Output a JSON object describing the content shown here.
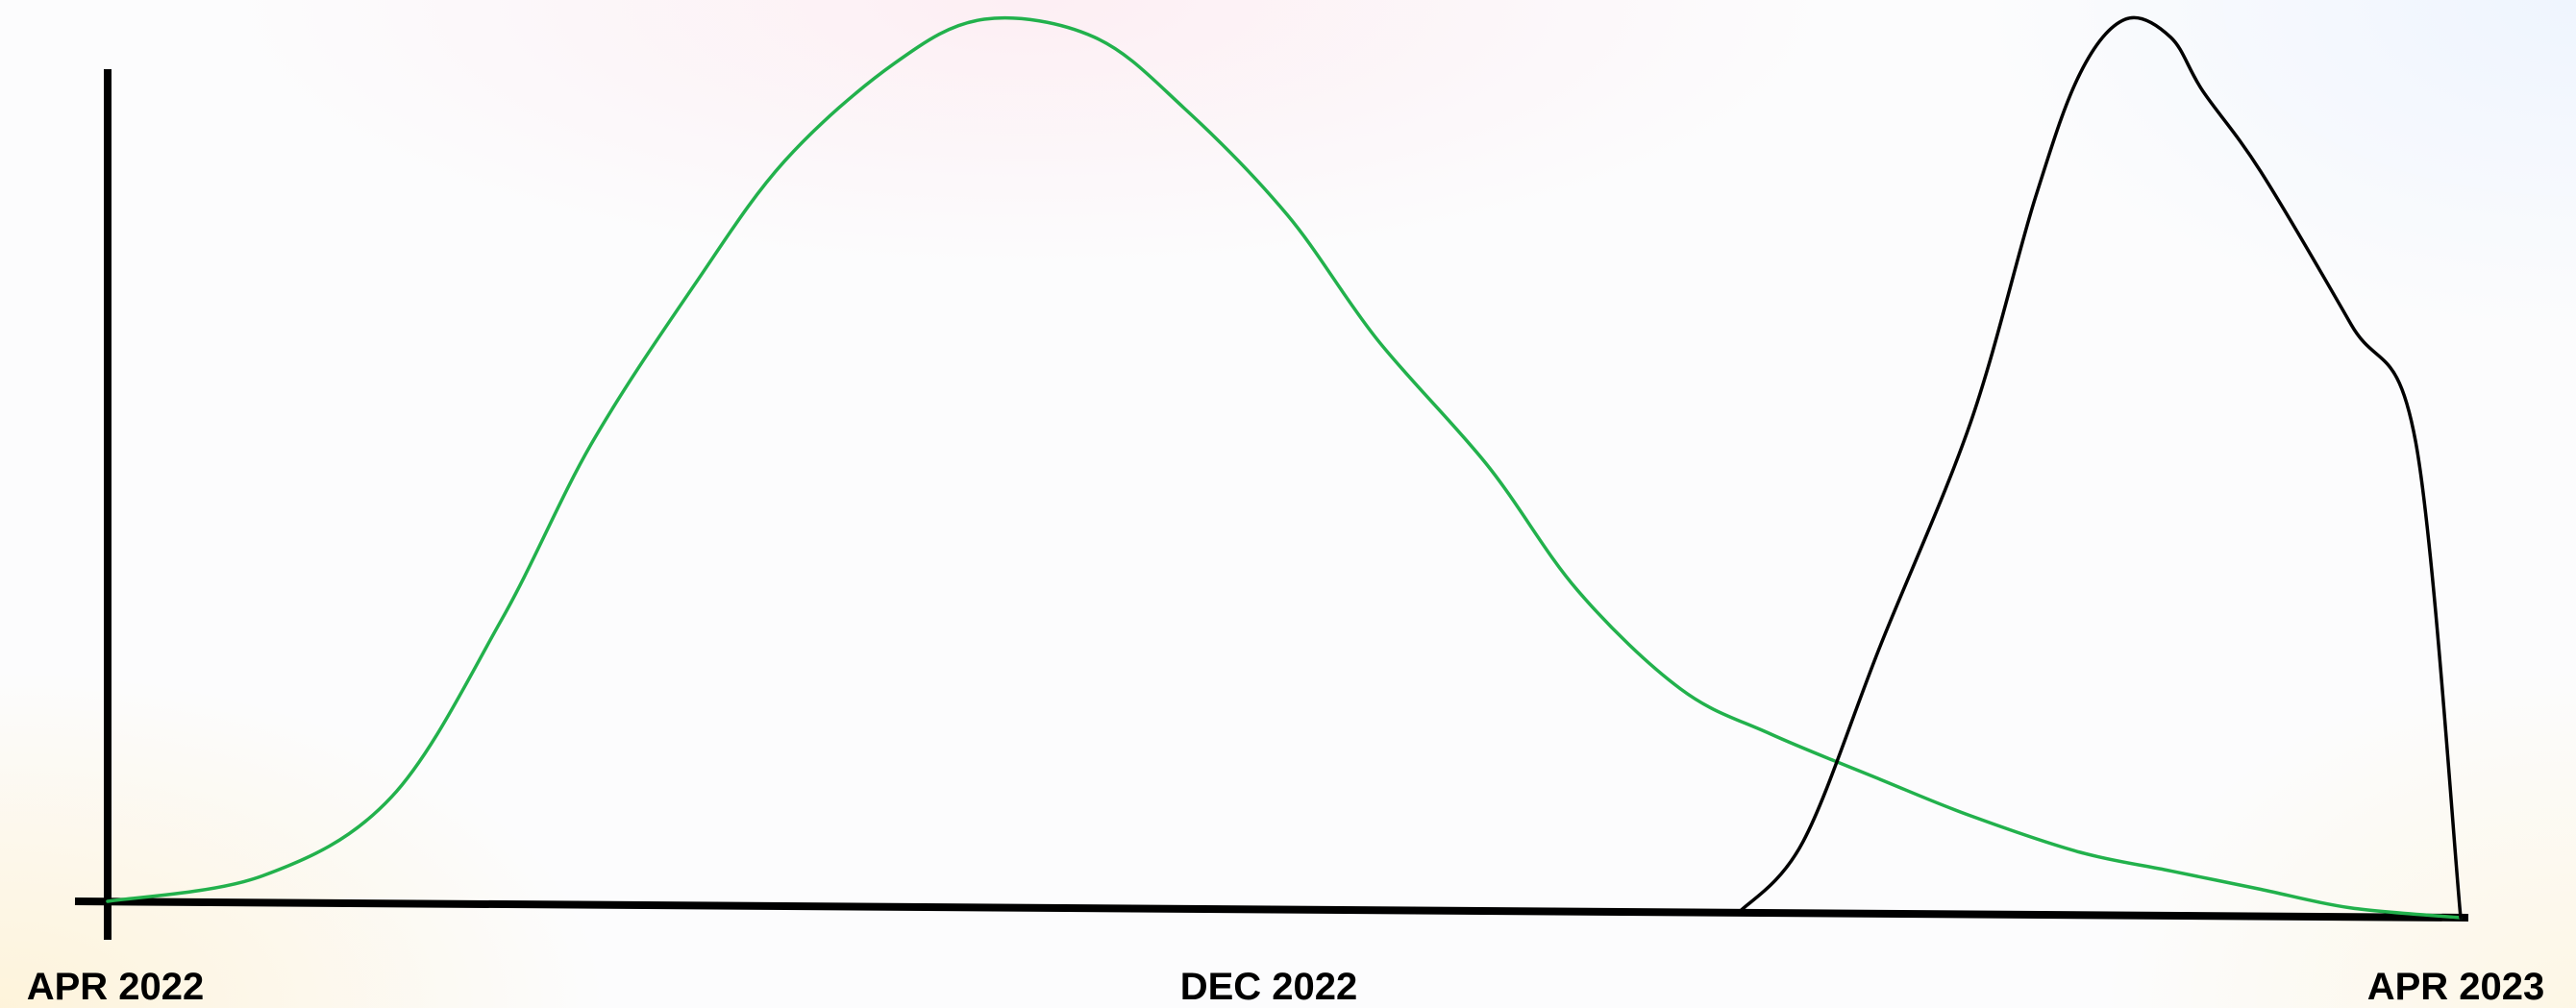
{
  "chart_data": {
    "type": "line",
    "title": "",
    "xlabel": "",
    "ylabel": "",
    "x_ticks": [
      "APR 2022",
      "DEC 2022",
      "APR 2023"
    ],
    "xlim": [
      "2022-04",
      "2023-04"
    ],
    "ylim": [
      0,
      100
    ],
    "grid": false,
    "legend": "none",
    "series": [
      {
        "color": "#22b14c",
        "x": [
          "2022-04-01",
          "2022-04-25",
          "2022-05-15",
          "2022-06-01",
          "2022-06-15",
          "2022-07-01",
          "2022-07-15",
          "2022-08-01",
          "2022-08-15",
          "2022-09-01",
          "2022-09-15",
          "2022-10-01",
          "2022-10-15",
          "2022-11-01",
          "2022-11-15",
          "2022-12-01",
          "2022-12-15",
          "2023-01-01",
          "2023-01-15",
          "2023-02-01",
          "2023-02-15",
          "2023-03-01",
          "2023-03-15",
          "2023-04-01"
        ],
        "y": [
          0,
          3,
          12,
          32,
          52,
          70,
          84,
          95,
          100,
          98,
          90,
          78,
          64,
          50,
          36,
          25,
          20,
          15,
          11,
          7,
          5,
          3,
          1,
          0
        ]
      },
      {
        "color": "#000000",
        "x": [
          "2022-12-10",
          "2022-12-20",
          "2023-01-01",
          "2023-01-15",
          "2023-01-25",
          "2023-02-01",
          "2023-02-08",
          "2023-02-15",
          "2023-02-20",
          "2023-03-01",
          "2023-03-15",
          "2023-03-25",
          "2023-04-01"
        ],
        "y": [
          0,
          8,
          30,
          55,
          80,
          94,
          100,
          98,
          92,
          83,
          66,
          53,
          0
        ]
      }
    ]
  }
}
